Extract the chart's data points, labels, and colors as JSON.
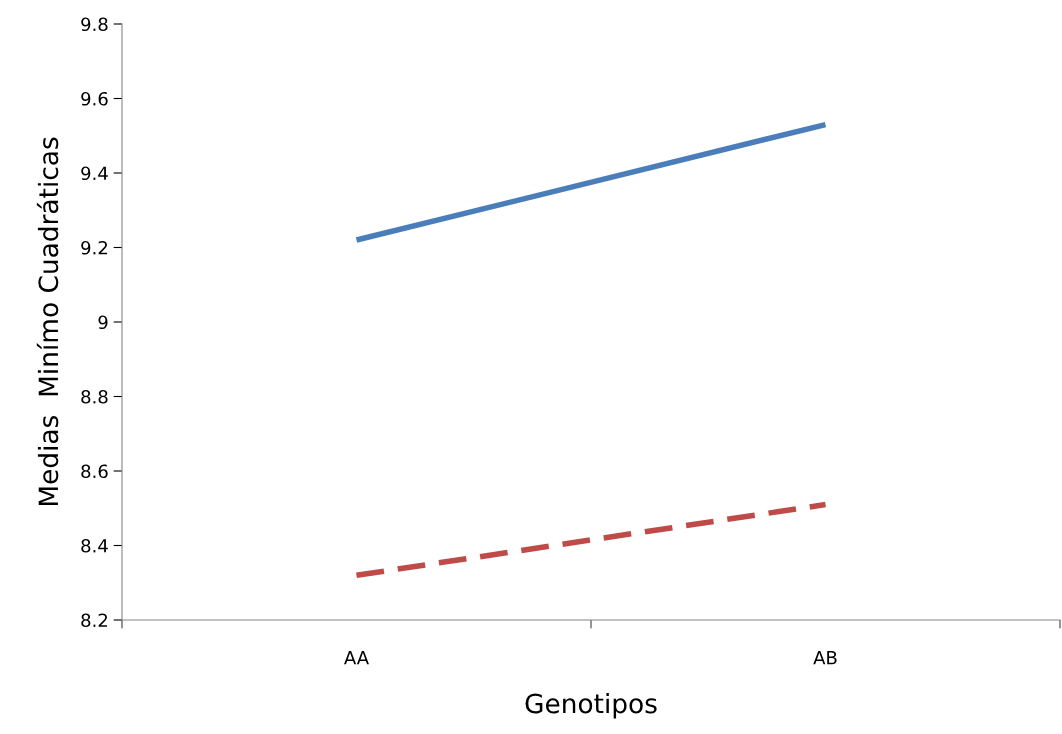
{
  "chart_data": {
    "type": "line",
    "xlabel": "Genotipos",
    "ylabel": "Medias  Minímo Cuadráticas",
    "categories": [
      "AA",
      "AB"
    ],
    "series": [
      {
        "color": "#4a7ebb",
        "values": [
          9.22,
          9.53
        ],
        "line_style": "solid"
      },
      {
        "color": "#be4b48",
        "values": [
          8.32,
          8.51
        ],
        "line_style": "dashed"
      }
    ],
    "ylim": [
      8.2,
      9.8
    ],
    "yticks": [
      8.2,
      8.4,
      8.6,
      8.8,
      9,
      9.2,
      9.4,
      9.6,
      9.8
    ],
    "grid": false,
    "legend": false,
    "marker": "none"
  }
}
